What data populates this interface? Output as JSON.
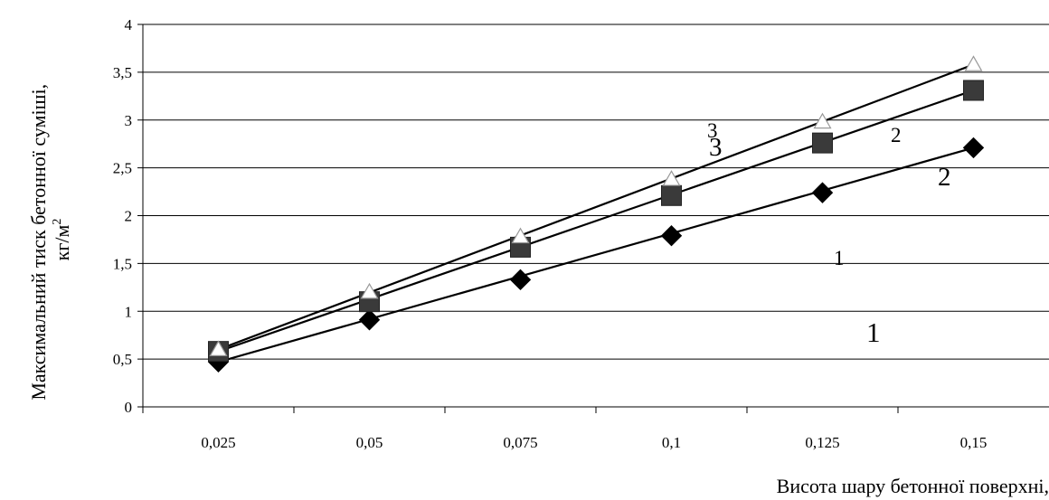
{
  "chart_data": {
    "type": "line",
    "x": [
      0.025,
      0.05,
      0.075,
      0.1,
      0.125,
      0.15
    ],
    "x_tick_labels": [
      "0,025",
      "0,05",
      "0,075",
      "0,1",
      "0,125",
      "0,15"
    ],
    "ylim": [
      0,
      4
    ],
    "y_ticks": [
      0,
      0.5,
      1,
      1.5,
      2,
      2.5,
      3,
      3.5,
      4
    ],
    "y_tick_labels": [
      "0",
      "0,5",
      "1",
      "1,5",
      "2",
      "2,5",
      "3",
      "3,5",
      "4"
    ],
    "ylabel_line1": "Максимальний тиск бетонної суміші,",
    "ylabel_line2_base": "кг/м",
    "ylabel_line2_sup": "2",
    "xlabel": "Висота шару бетонної поверхні,",
    "grid": "horizontal",
    "series": [
      {
        "values": [
          0.47,
          0.91,
          1.33,
          1.79,
          2.24,
          2.71
        ],
        "marker": "diamond",
        "color": "#000000"
      },
      {
        "values": [
          0.58,
          1.1,
          1.67,
          2.21,
          2.76,
          3.31
        ],
        "marker": "square",
        "color": "#3a3a3a"
      },
      {
        "values": [
          0.6,
          1.2,
          1.78,
          2.38,
          2.98,
          3.58
        ],
        "marker": "triangle",
        "color": "#ffffff"
      }
    ],
    "annotations": [
      "3",
      "3",
      "2",
      "2",
      "1",
      "1"
    ]
  }
}
